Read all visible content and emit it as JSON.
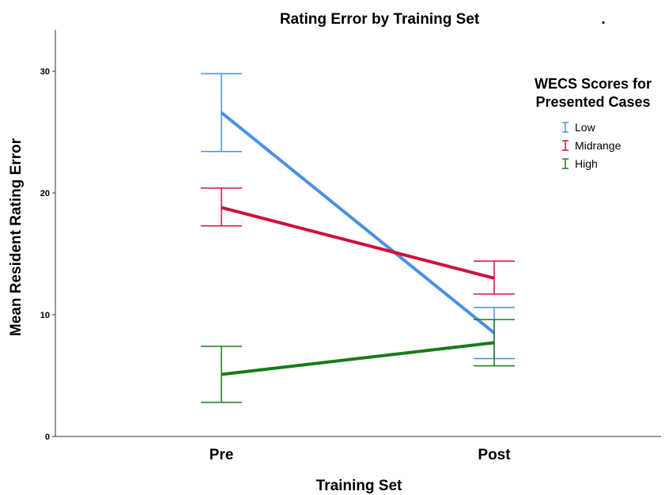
{
  "chart_data": {
    "type": "line",
    "title": "Rating Error by Training Set",
    "title_suffix": ".",
    "xlabel": "Training Set",
    "ylabel": "Mean Resident Rating Error",
    "categories": [
      "Pre",
      "Post"
    ],
    "ylim": [
      0,
      33
    ],
    "yticks": [
      0,
      10,
      20,
      30
    ],
    "grid": false,
    "legend": {
      "title_lines": [
        "WECS Scores for",
        "Presented Cases"
      ],
      "placement": "right"
    },
    "series": [
      {
        "name": "Low",
        "color": "#4a90e2",
        "values": [
          26.6,
          8.5
        ],
        "error_low": [
          23.4,
          6.4
        ],
        "error_high": [
          29.8,
          10.6
        ]
      },
      {
        "name": "Midrange",
        "color": "#d0103a",
        "values": [
          18.8,
          13.0
        ],
        "error_low": [
          17.3,
          11.7
        ],
        "error_high": [
          20.4,
          14.4
        ]
      },
      {
        "name": "High",
        "color": "#1a7a1a",
        "values": [
          5.1,
          7.7
        ],
        "error_low": [
          2.8,
          5.8
        ],
        "error_high": [
          7.4,
          9.6
        ]
      }
    ]
  }
}
